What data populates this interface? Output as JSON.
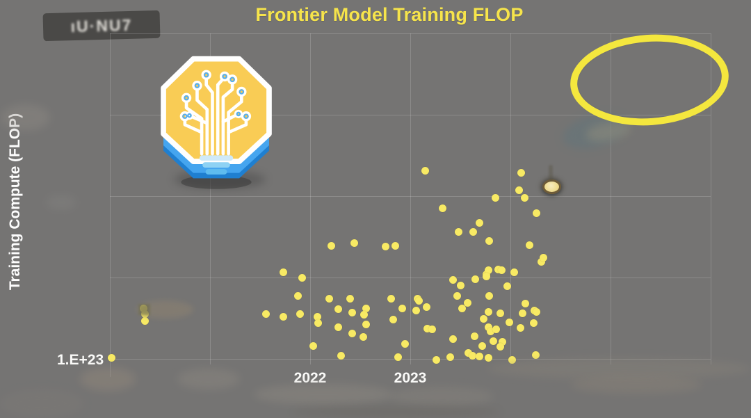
{
  "header": {
    "title": "Frontier Model Training FLOP"
  },
  "colors": {
    "background": "#757473",
    "title_yellow": "#F6E44B",
    "point_yellow": "#F8EA64",
    "annotation_yellow": "#F4E73E",
    "axis_text_white": "#FAFAF8",
    "gridline_gray": "#8C8C8C"
  },
  "watermark": {
    "garbled_text": "ıU·NU7"
  },
  "chart_data": {
    "type": "scatter",
    "title": "Frontier Model Training FLOP",
    "xlabel": "",
    "ylabel": "Training Compute (FLOP)",
    "x_axis": {
      "unit": "year",
      "min": 2020,
      "max": 2026,
      "gridline_years": [
        2020,
        2021,
        2022,
        2023,
        2024,
        2025,
        2026
      ],
      "labeled_ticks": [
        {
          "year": 2022,
          "label": "2022"
        },
        {
          "year": 2023,
          "label": "2023"
        }
      ]
    },
    "y_axis": {
      "scale": "log10",
      "unit": "FLOP",
      "min_log10": 23,
      "max_log10": 27,
      "gridline_log10": [
        23,
        24,
        25,
        26,
        27
      ],
      "labeled_ticks": [
        {
          "log10": 23,
          "label": "1.E+23"
        }
      ]
    },
    "grid": true,
    "legend": "none",
    "points_format": "[decimal_year, log10_training_flop]",
    "points": [
      [
        2020.02,
        23.01
      ],
      [
        2020.34,
        23.62
      ],
      [
        2020.35,
        23.55
      ],
      [
        2020.35,
        23.47
      ],
      [
        2021.56,
        23.55
      ],
      [
        2021.73,
        24.06
      ],
      [
        2021.92,
        24.0
      ],
      [
        2021.88,
        23.77
      ],
      [
        2021.73,
        23.52
      ],
      [
        2021.9,
        23.55
      ],
      [
        2022.07,
        23.52
      ],
      [
        2022.08,
        23.44
      ],
      [
        2022.03,
        23.16
      ],
      [
        2022.21,
        24.39
      ],
      [
        2022.44,
        24.42
      ],
      [
        2022.75,
        24.38
      ],
      [
        2022.85,
        24.39
      ],
      [
        2022.19,
        23.74
      ],
      [
        2022.4,
        23.74
      ],
      [
        2022.28,
        23.61
      ],
      [
        2022.42,
        23.57
      ],
      [
        2022.56,
        23.62
      ],
      [
        2022.54,
        23.54
      ],
      [
        2022.28,
        23.39
      ],
      [
        2022.42,
        23.31
      ],
      [
        2022.53,
        23.27
      ],
      [
        2022.56,
        23.42
      ],
      [
        2022.31,
        23.04
      ],
      [
        2022.81,
        23.74
      ],
      [
        2022.83,
        23.48
      ],
      [
        2022.92,
        23.62
      ],
      [
        2022.88,
        23.02
      ],
      [
        2022.95,
        23.18
      ],
      [
        2023.06,
        23.59
      ],
      [
        2023.07,
        23.74
      ],
      [
        2023.09,
        23.71
      ],
      [
        2023.16,
        23.64
      ],
      [
        2023.15,
        25.31
      ],
      [
        2023.17,
        23.37
      ],
      [
        2023.22,
        23.36
      ],
      [
        2023.26,
        22.99
      ],
      [
        2023.4,
        23.02
      ],
      [
        2023.43,
        23.24
      ],
      [
        2023.43,
        23.97
      ],
      [
        2023.47,
        23.77
      ],
      [
        2023.5,
        23.9
      ],
      [
        2023.52,
        23.62
      ],
      [
        2023.57,
        23.69
      ],
      [
        2023.32,
        24.85
      ],
      [
        2023.48,
        24.56
      ],
      [
        2023.63,
        24.56
      ],
      [
        2023.69,
        24.67
      ],
      [
        2023.64,
        23.28
      ],
      [
        2023.58,
        23.07
      ],
      [
        2023.62,
        23.04
      ],
      [
        2023.69,
        23.03
      ],
      [
        2023.72,
        23.16
      ],
      [
        2023.73,
        23.49
      ],
      [
        2023.76,
        24.04
      ],
      [
        2023.78,
        24.09
      ],
      [
        2023.76,
        24.01
      ],
      [
        2023.65,
        23.98
      ],
      [
        2023.88,
        24.1
      ],
      [
        2023.91,
        24.09
      ],
      [
        2023.79,
        24.45
      ],
      [
        2023.79,
        23.77
      ],
      [
        2023.78,
        23.58
      ],
      [
        2023.9,
        23.56
      ],
      [
        2023.78,
        23.39
      ],
      [
        2023.8,
        23.34
      ],
      [
        2023.86,
        23.36
      ],
      [
        2023.83,
        23.22
      ],
      [
        2023.92,
        23.21
      ],
      [
        2023.9,
        23.15
      ],
      [
        2023.78,
        23.01
      ],
      [
        2023.85,
        24.98
      ],
      [
        2023.97,
        23.89
      ],
      [
        2023.99,
        23.45
      ],
      [
        2024.02,
        22.99
      ],
      [
        2024.04,
        24.06
      ],
      [
        2024.1,
        23.38
      ],
      [
        2024.12,
        23.56
      ],
      [
        2024.15,
        23.68
      ],
      [
        2024.19,
        24.4
      ],
      [
        2024.23,
        23.44
      ],
      [
        2024.24,
        23.59
      ],
      [
        2024.26,
        23.58
      ],
      [
        2024.25,
        23.05
      ],
      [
        2024.26,
        24.79
      ],
      [
        2024.31,
        24.19
      ],
      [
        2024.33,
        24.24
      ],
      [
        2024.14,
        24.98
      ],
      [
        2024.09,
        25.07
      ],
      [
        2024.11,
        25.29
      ]
    ],
    "highlight_point": {
      "year": 2024.41,
      "log10_flop": 25.12,
      "style": "pale-yellow dot with dark ring"
    },
    "annotations": [
      {
        "type": "empty-ellipse",
        "position": "top-right",
        "meaning": "projected future frontier region"
      }
    ]
  }
}
